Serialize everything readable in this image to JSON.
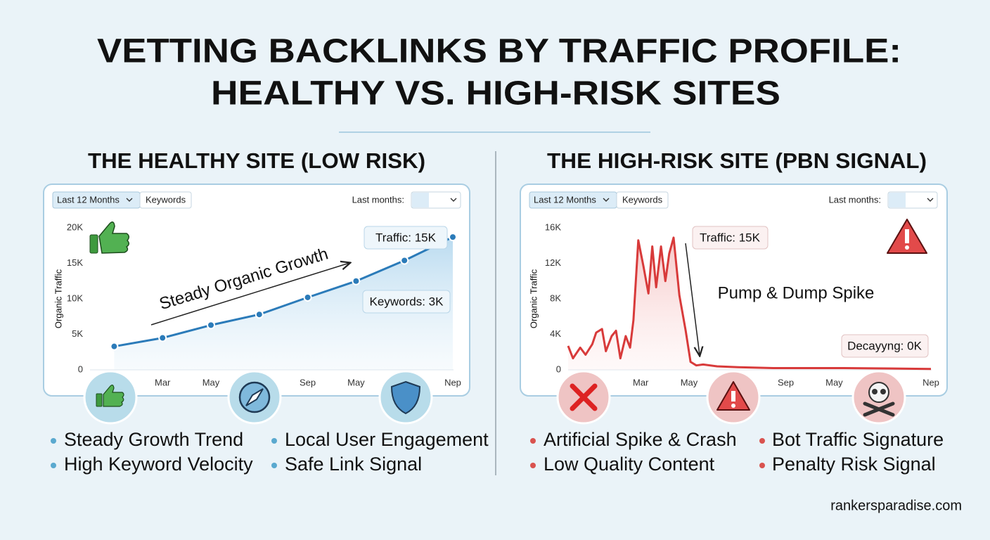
{
  "title": [
    "VETTING BACKLINKS BY TRAFFIC PROFILE:",
    "HEALTHY VS. HIGH-RISK SITES"
  ],
  "footer": "rankersparadise.com",
  "panels": [
    {
      "heading": "THE HEALTHY SITE (LOW RISK)",
      "controls": {
        "range": "Last 12 Months",
        "tab": "Keywords",
        "label": "Last months:"
      },
      "bullets": [
        "Steady Growth Trend",
        "High Keyword Velocity",
        "Local User Engagement",
        "Safe Link Signal"
      ]
    },
    {
      "heading": "THE HIGH-RISK SITE (PBN SIGNAL)",
      "controls": {
        "range": "Last 12 Months",
        "tab": "Keywords",
        "label": "Last months:"
      },
      "bullets": [
        "Artificial Spike & Crash",
        "Low Quality Content",
        "Bot Traffic Signature",
        "Penalty Risk Signal"
      ]
    }
  ],
  "chart_data": [
    {
      "type": "line",
      "y_label": "Organic Traffic",
      "color": "#2b7bb9",
      "area": true,
      "markers": true,
      "grid": false,
      "x": [
        0,
        1,
        2,
        3,
        4,
        5,
        6,
        7
      ],
      "values": [
        3300,
        4500,
        6300,
        7800,
        10200,
        12500,
        15400,
        18700
      ],
      "xlim": [
        -0.5,
        7
      ],
      "xticks": [
        {
          "value": 1,
          "label": "Mar"
        },
        {
          "value": 2,
          "label": "May"
        },
        {
          "value": 4,
          "label": "Sep"
        },
        {
          "value": 5,
          "label": "May"
        },
        {
          "value": 7,
          "label": "Nep"
        }
      ],
      "ylim": [
        0,
        20000
      ],
      "yticks": [
        0,
        {
          "value": 5000,
          "label": "5K"
        },
        {
          "value": 10000,
          "label": "10K"
        },
        {
          "value": 15000,
          "label": "15K"
        },
        {
          "value": 20000,
          "label": "20K"
        }
      ],
      "annotations": [
        "Steady Organic Growth",
        "Traffic: 15K",
        "Keywords: 3K"
      ]
    },
    {
      "type": "line",
      "y_label": "Organic Traffic",
      "color": "#d83a3a",
      "area": true,
      "markers": false,
      "grid": false,
      "x": [
        -0.5,
        -0.4,
        -0.25,
        -0.14,
        0,
        0.08,
        0.2,
        0.28,
        0.4,
        0.49,
        0.58,
        0.69,
        0.78,
        0.85,
        0.95,
        1.06,
        1.16,
        1.24,
        1.32,
        1.42,
        1.51,
        1.59,
        1.68,
        1.8,
        1.93,
        2.03,
        2.15,
        2.29,
        2.58,
        3.02,
        3.74,
        5.2,
        7
      ],
      "values": [
        2700,
        1300,
        2500,
        1700,
        2900,
        4200,
        4600,
        2100,
        3800,
        4400,
        1300,
        3800,
        2500,
        5600,
        14600,
        11600,
        8600,
        13900,
        9300,
        13900,
        10000,
        13100,
        14900,
        8400,
        4400,
        900,
        500,
        600,
        400,
        300,
        200,
        200,
        100
      ],
      "xlim": [
        -0.5,
        7
      ],
      "xticks": [
        {
          "value": 1,
          "label": "Mar"
        },
        {
          "value": 2,
          "label": "May"
        },
        {
          "value": 4,
          "label": "Sep"
        },
        {
          "value": 5,
          "label": "May"
        },
        {
          "value": 7,
          "label": "Nep"
        }
      ],
      "ylim": [
        0,
        16000
      ],
      "yticks": [
        0,
        {
          "value": 4000,
          "label": "4K"
        },
        {
          "value": 8000,
          "label": "8K"
        },
        {
          "value": 12000,
          "label": "12K"
        },
        {
          "value": 16000,
          "label": "16K"
        }
      ],
      "annotations": [
        "Pump & Dump Spike",
        "Traffic: 15K",
        "Decayyng: 0K"
      ]
    }
  ]
}
